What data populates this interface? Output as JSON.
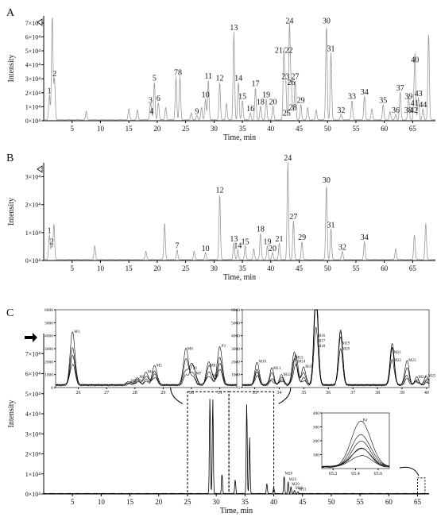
{
  "figure": {
    "panels": [
      "A",
      "B",
      "C"
    ],
    "xlabel": "Time, min",
    "ylabel": "Intensity"
  },
  "chart_data": [
    {
      "type": "line",
      "panel": "A",
      "xlabel": "Time, min",
      "ylabel": "Intensity",
      "xlim": [
        0,
        69
      ],
      "ylim": [
        0,
        75000
      ],
      "x_ticks": [
        "5",
        "10",
        "15",
        "20",
        "25",
        "30",
        "35",
        "40",
        "45",
        "50",
        "55",
        "60",
        "65"
      ],
      "y_ticks": [
        "0×10⁴",
        "1×10⁴",
        "2×10⁴",
        "3×10⁴",
        "4×10⁴",
        "5×10⁴",
        "6×10⁴",
        "7×10⁴"
      ],
      "peaks": [
        {
          "label": "1",
          "x": 1.0,
          "y": 18000
        },
        {
          "label": "2",
          "x": 1.9,
          "y": 30000
        },
        {
          "label": "3",
          "x": 18.8,
          "y": 11000
        },
        {
          "label": "4",
          "x": 19.0,
          "y": 3500
        },
        {
          "label": "5",
          "x": 19.5,
          "y": 27000
        },
        {
          "label": "6",
          "x": 20.2,
          "y": 12500
        },
        {
          "label": "7",
          "x": 23.3,
          "y": 31000
        },
        {
          "label": "8",
          "x": 24.0,
          "y": 31000
        },
        {
          "label": "9",
          "x": 27.0,
          "y": 3000
        },
        {
          "label": "10",
          "x": 28.5,
          "y": 15000
        },
        {
          "label": "11",
          "x": 29.0,
          "y": 28500
        },
        {
          "label": "12",
          "x": 31.0,
          "y": 27000
        },
        {
          "label": "13",
          "x": 33.5,
          "y": 63000
        },
        {
          "label": "14",
          "x": 34.3,
          "y": 27000
        },
        {
          "label": "15",
          "x": 35.0,
          "y": 14000
        },
        {
          "label": "16",
          "x": 36.4,
          "y": 5000
        },
        {
          "label": "17",
          "x": 37.3,
          "y": 23000
        },
        {
          "label": "18",
          "x": 38.2,
          "y": 10000
        },
        {
          "label": "19",
          "x": 39.2,
          "y": 15000
        },
        {
          "label": "20",
          "x": 40.4,
          "y": 10000
        },
        {
          "label": "21/22",
          "x": 42.3,
          "y": 47000
        },
        {
          "label": "23",
          "x": 42.6,
          "y": 28000
        },
        {
          "label": "24",
          "x": 43.3,
          "y": 68000
        },
        {
          "label": "25",
          "x": 42.8,
          "y": 2000
        },
        {
          "label": "26",
          "x": 43.6,
          "y": 24000
        },
        {
          "label": "27",
          "x": 44.3,
          "y": 28000
        },
        {
          "label": "28",
          "x": 43.9,
          "y": 6000
        },
        {
          "label": "29",
          "x": 45.3,
          "y": 11000
        },
        {
          "label": "30",
          "x": 49.8,
          "y": 68000
        },
        {
          "label": "31",
          "x": 50.6,
          "y": 48000
        },
        {
          "label": "32",
          "x": 52.4,
          "y": 4000
        },
        {
          "label": "33",
          "x": 54.3,
          "y": 14000
        },
        {
          "label": "34",
          "x": 56.5,
          "y": 17000
        },
        {
          "label": "35",
          "x": 59.8,
          "y": 11000
        },
        {
          "label": "36",
          "x": 62.0,
          "y": 4000
        },
        {
          "label": "37",
          "x": 62.8,
          "y": 20000
        },
        {
          "label": "38",
          "x": 64.2,
          "y": 4000
        },
        {
          "label": "39",
          "x": 64.3,
          "y": 14000
        },
        {
          "label": "40",
          "x": 65.4,
          "y": 40000
        },
        {
          "label": "41",
          "x": 65.3,
          "y": 9000
        },
        {
          "label": "42",
          "x": 65.2,
          "y": 4000
        },
        {
          "label": "43",
          "x": 66.0,
          "y": 16000
        },
        {
          "label": "44",
          "x": 66.8,
          "y": 8000
        }
      ],
      "other_peaks": [
        {
          "x": 1.5,
          "y": 75000
        },
        {
          "x": 7.5,
          "y": 6000
        },
        {
          "x": 15.0,
          "y": 8000
        },
        {
          "x": 16.5,
          "y": 7000
        },
        {
          "x": 21.5,
          "y": 9000
        },
        {
          "x": 26.0,
          "y": 5000
        },
        {
          "x": 27.8,
          "y": 9000
        },
        {
          "x": 32.2,
          "y": 12000
        },
        {
          "x": 46.5,
          "y": 9000
        },
        {
          "x": 48.0,
          "y": 7000
        },
        {
          "x": 57.8,
          "y": 8000
        },
        {
          "x": 61.0,
          "y": 6000
        },
        {
          "x": 67.8,
          "y": 62000
        }
      ]
    },
    {
      "type": "line",
      "panel": "B",
      "xlabel": "Time, min",
      "ylabel": "Intensity",
      "xlim": [
        0,
        69
      ],
      "ylim": [
        0,
        35000
      ],
      "x_ticks": [
        "5",
        "10",
        "15",
        "20",
        "25",
        "30",
        "35",
        "40",
        "45",
        "50",
        "55",
        "60",
        "65"
      ],
      "y_ticks": [
        "0×10⁴",
        "1×10⁴",
        "2×10⁴",
        "3×10⁴"
      ],
      "peaks": [
        {
          "label": "1",
          "x": 1.0,
          "y": 9000
        },
        {
          "label": "2",
          "x": 1.4,
          "y": 5000
        },
        {
          "label": "7",
          "x": 23.5,
          "y": 3500
        },
        {
          "label": "10",
          "x": 28.5,
          "y": 2500
        },
        {
          "label": "12",
          "x": 31.0,
          "y": 23500
        },
        {
          "label": "13",
          "x": 33.5,
          "y": 6000
        },
        {
          "label": "14",
          "x": 34.2,
          "y": 3500
        },
        {
          "label": "15",
          "x": 35.5,
          "y": 5000
        },
        {
          "label": "18",
          "x": 38.2,
          "y": 9500
        },
        {
          "label": "19",
          "x": 39.4,
          "y": 5000
        },
        {
          "label": "20",
          "x": 40.3,
          "y": 2500
        },
        {
          "label": "21",
          "x": 41.5,
          "y": 6000
        },
        {
          "label": "24",
          "x": 43.0,
          "y": 35000
        },
        {
          "label": "27",
          "x": 44.0,
          "y": 14000
        },
        {
          "label": "29",
          "x": 45.5,
          "y": 6500
        },
        {
          "label": "30",
          "x": 49.8,
          "y": 27000
        },
        {
          "label": "31",
          "x": 50.6,
          "y": 11000
        },
        {
          "label": "32",
          "x": 52.6,
          "y": 3000
        },
        {
          "label": "34",
          "x": 56.5,
          "y": 6500
        }
      ],
      "other_peaks": [
        {
          "x": 1.8,
          "y": 13000
        },
        {
          "x": 9.0,
          "y": 5000
        },
        {
          "x": 18.0,
          "y": 3000
        },
        {
          "x": 21.3,
          "y": 13000
        },
        {
          "x": 26.5,
          "y": 3000
        },
        {
          "x": 37.0,
          "y": 4000
        },
        {
          "x": 62.0,
          "y": 4000
        },
        {
          "x": 65.3,
          "y": 9000
        },
        {
          "x": 67.3,
          "y": 13000
        }
      ]
    },
    {
      "type": "line",
      "panel": "C",
      "xlabel": "Time, min",
      "ylabel": "Intensity",
      "xlim": [
        0,
        67
      ],
      "ylim": [
        0,
        80000
      ],
      "x_ticks": [
        "5",
        "10",
        "15",
        "20",
        "25",
        "30",
        "35",
        "40",
        "45",
        "50",
        "55",
        "60",
        "65"
      ],
      "y_ticks": [
        "0×10⁴",
        "1×10⁴",
        "2×10⁴",
        "3×10⁴",
        "4×10⁴",
        "5×10⁴",
        "6×10⁴",
        "7×10⁴"
      ],
      "peaks": [
        {
          "label": "M28",
          "x": 41.8,
          "y": 9000
        },
        {
          "label": "M25",
          "x": 42.5,
          "y": 6000
        },
        {
          "label": "M29",
          "x": 43.0,
          "y": 3500
        },
        {
          "label": "M30",
          "x": 43.6,
          "y": 1500
        },
        {
          "label": "M31",
          "x": 44.2,
          "y": 1000
        }
      ],
      "other_peaks": [
        {
          "x": 28.9,
          "y": 48000
        },
        {
          "x": 29.4,
          "y": 47000
        },
        {
          "x": 31.0,
          "y": 10000
        },
        {
          "x": 33.3,
          "y": 7000
        },
        {
          "x": 35.3,
          "y": 45000
        },
        {
          "x": 35.8,
          "y": 28000
        },
        {
          "x": 38.8,
          "y": 5000
        },
        {
          "x": 40.0,
          "y": 3000
        }
      ],
      "insets": [
        {
          "ylim": [
            0,
            6000
          ],
          "y_ticks": [
            "0",
            "1000",
            "2000",
            "3000",
            "4000",
            "5000",
            "6000"
          ],
          "x_ticks": [
            "26",
            "27",
            "28",
            "29",
            "30",
            "31"
          ],
          "peaks": [
            {
              "label": "M1",
              "x": 25.8,
              "y": 4100
            },
            {
              "label": "M2",
              "x": 27.8,
              "y": 300
            },
            {
              "label": "M3",
              "x": 28.1,
              "y": 600
            },
            {
              "label": "M4",
              "x": 28.4,
              "y": 1000
            },
            {
              "label": "M5",
              "x": 28.7,
              "y": 1500
            },
            {
              "label": "M6",
              "x": 29.8,
              "y": 2800
            },
            {
              "label": "P1",
              "x": 30.0,
              "y": 1300
            },
            {
              "label": "M7",
              "x": 30.1,
              "y": 900
            },
            {
              "label": "M8",
              "x": 30.6,
              "y": 1500
            },
            {
              "label": "M9",
              "x": 30.7,
              "y": 700
            },
            {
              "label": "P3",
              "x": 31.0,
              "y": 3000
            }
          ]
        },
        {
          "ylim": [
            0,
            6000
          ],
          "y_ticks": [
            "0",
            "1000",
            "2000",
            "3000",
            "4000",
            "5000",
            "6000"
          ],
          "x_ticks": [
            "33",
            "34",
            "35",
            "36",
            "37",
            "38",
            "39",
            "40"
          ],
          "peaks": [
            {
              "label": "M10",
              "x": 33.1,
              "y": 1800
            },
            {
              "label": "M11",
              "x": 33.7,
              "y": 1300
            },
            {
              "label": "M12",
              "x": 34.1,
              "y": 800
            },
            {
              "label": "M13",
              "x": 34.6,
              "y": 2100
            },
            {
              "label": "M14",
              "x": 34.7,
              "y": 1800
            },
            {
              "label": "M15",
              "x": 35.0,
              "y": 1400
            },
            {
              "label": "M16",
              "x": 35.5,
              "y": 3800
            },
            {
              "label": "M17",
              "x": 35.5,
              "y": 3400
            },
            {
              "label": "M18",
              "x": 35.5,
              "y": 3000
            },
            {
              "label": "M19",
              "x": 36.5,
              "y": 3200
            },
            {
              "label": "M20",
              "x": 36.5,
              "y": 2800
            },
            {
              "label": "M21",
              "x": 38.6,
              "y": 2500
            },
            {
              "label": "M22",
              "x": 38.6,
              "y": 1900
            },
            {
              "label": "M23",
              "x": 39.2,
              "y": 1900
            },
            {
              "label": "M24",
              "x": 39.6,
              "y": 600
            },
            {
              "label": "M25",
              "x": 40.0,
              "y": 700
            }
          ]
        },
        {
          "ylim": [
            0,
            400
          ],
          "y_ticks": [
            "100",
            "200",
            "300",
            "400"
          ],
          "x_ticks": [
            "65.2",
            "65.4",
            "65.6"
          ],
          "peaks": [
            {
              "label": "P4",
              "x": 65.45,
              "y": 330
            }
          ]
        }
      ]
    }
  ]
}
